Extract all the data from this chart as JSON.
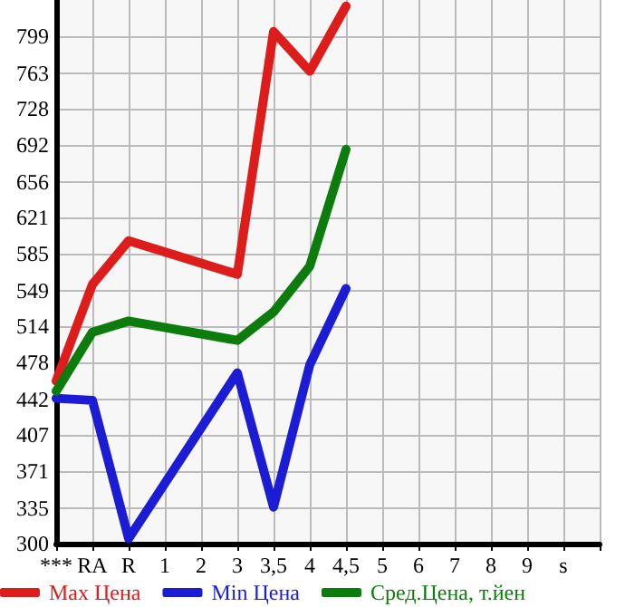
{
  "chart_data": {
    "type": "line",
    "categories": [
      "***",
      "RA",
      "R",
      "1",
      "2",
      "3",
      "3,5",
      "4",
      "4,5",
      "5",
      "6",
      "7",
      "8",
      "9",
      "s",
      null
    ],
    "series": [
      {
        "name": "Max Цена",
        "color": "#dd1c1c",
        "values": [
          460,
          555,
          598,
          null,
          null,
          565,
          804,
          765,
          829,
          null,
          null,
          null,
          null,
          null,
          null,
          null
        ]
      },
      {
        "name": "Min Цена",
        "color": "#1c1cd4",
        "values": [
          443,
          441,
          305,
          null,
          null,
          468,
          336,
          476,
          551,
          null,
          null,
          null,
          null,
          null,
          null,
          null
        ]
      },
      {
        "name": "Сред.Цена, т.йен",
        "color": "#0c7c0c",
        "values": [
          450,
          508,
          519,
          null,
          null,
          500,
          528,
          573,
          688,
          null,
          null,
          null,
          null,
          null,
          null,
          null
        ]
      }
    ],
    "ylim": [
      300,
      835
    ],
    "yticks": [
      300,
      335,
      371,
      407,
      442,
      478,
      514,
      549,
      585,
      621,
      656,
      692,
      728,
      763,
      799
    ],
    "grid": true,
    "legend": "bottom",
    "marker": "none",
    "line_style": "solid"
  }
}
